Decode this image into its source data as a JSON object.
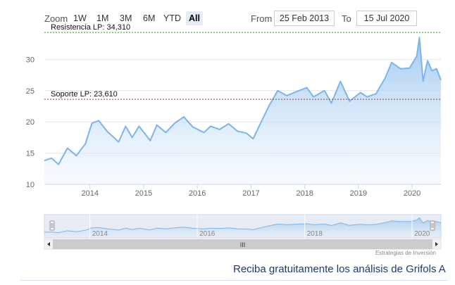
{
  "toolbar": {
    "zoom_label": "Zoom",
    "buttons": [
      "1W",
      "1M",
      "3M",
      "6M",
      "YTD",
      "All"
    ],
    "active": "All",
    "from_label": "From",
    "from_value": "25 Feb 2013",
    "to_label": "To",
    "to_value": "15 Jul 2020"
  },
  "footer": {
    "text": "Reciba gratuitamente los análisis de Grifols A",
    "credits": "Estrategias de Inversión"
  },
  "navigator": {
    "labels": [
      "2014",
      "2016",
      "2018",
      "2020"
    ],
    "scroll_grip": "III"
  },
  "colors": {
    "line": "#7cb5ec",
    "fill_top": "#a9cdf2",
    "resistance": "#2e9e2e",
    "support": "#c0282d",
    "footer_text": "#1e3a6e"
  },
  "chart_data": {
    "type": "area",
    "x": [
      "2013-02-25",
      "2013-04-15",
      "2013-06-01",
      "2013-08-01",
      "2013-10-01",
      "2013-12-01",
      "2014-01-15",
      "2014-03-01",
      "2014-05-01",
      "2014-07-15",
      "2014-09-01",
      "2014-10-15",
      "2014-12-01",
      "2015-02-15",
      "2015-04-01",
      "2015-06-01",
      "2015-08-01",
      "2015-10-01",
      "2015-12-01",
      "2016-02-15",
      "2016-04-01",
      "2016-06-01",
      "2016-08-01",
      "2016-10-01",
      "2016-12-01",
      "2017-01-15",
      "2017-03-01",
      "2017-05-01",
      "2017-07-01",
      "2017-09-01",
      "2017-11-01",
      "2018-01-15",
      "2018-03-01",
      "2018-05-15",
      "2018-07-01",
      "2018-09-01",
      "2018-11-01",
      "2019-01-15",
      "2019-03-01",
      "2019-05-01",
      "2019-07-01",
      "2019-08-15",
      "2019-10-15",
      "2019-12-15",
      "2020-02-01",
      "2020-02-20",
      "2020-03-16",
      "2020-04-15",
      "2020-05-15",
      "2020-06-15",
      "2020-07-15"
    ],
    "values": [
      13.8,
      14.2,
      13.2,
      15.8,
      14.6,
      16.5,
      19.8,
      20.2,
      18.4,
      16.8,
      19.3,
      17.5,
      19.3,
      17.0,
      19.5,
      18.3,
      19.8,
      20.8,
      19.2,
      18.3,
      19.3,
      18.8,
      19.7,
      18.5,
      18.2,
      17.3,
      19.5,
      22.5,
      25.0,
      24.2,
      24.8,
      25.5,
      24.0,
      25.0,
      23.0,
      26.5,
      23.3,
      24.7,
      24.0,
      24.5,
      27.0,
      29.5,
      28.5,
      28.6,
      30.5,
      33.5,
      26.5,
      29.8,
      28.2,
      28.5,
      26.7
    ],
    "xlabel": "",
    "ylabel": "",
    "ylim": [
      10,
      35
    ],
    "yticks": [
      10,
      15,
      20,
      25,
      30
    ],
    "xticks": [
      "2014",
      "2015",
      "2016",
      "2017",
      "2018",
      "2019",
      "2020"
    ],
    "grid": true,
    "annotations": [
      {
        "label": "Resistencia LP: 34,310",
        "y": 34.31,
        "style": "dashed",
        "color": "#2e9e2e"
      },
      {
        "label": "Soporte LP: 23,610",
        "y": 23.61,
        "style": "dashed",
        "color": "#c0282d"
      }
    ]
  }
}
